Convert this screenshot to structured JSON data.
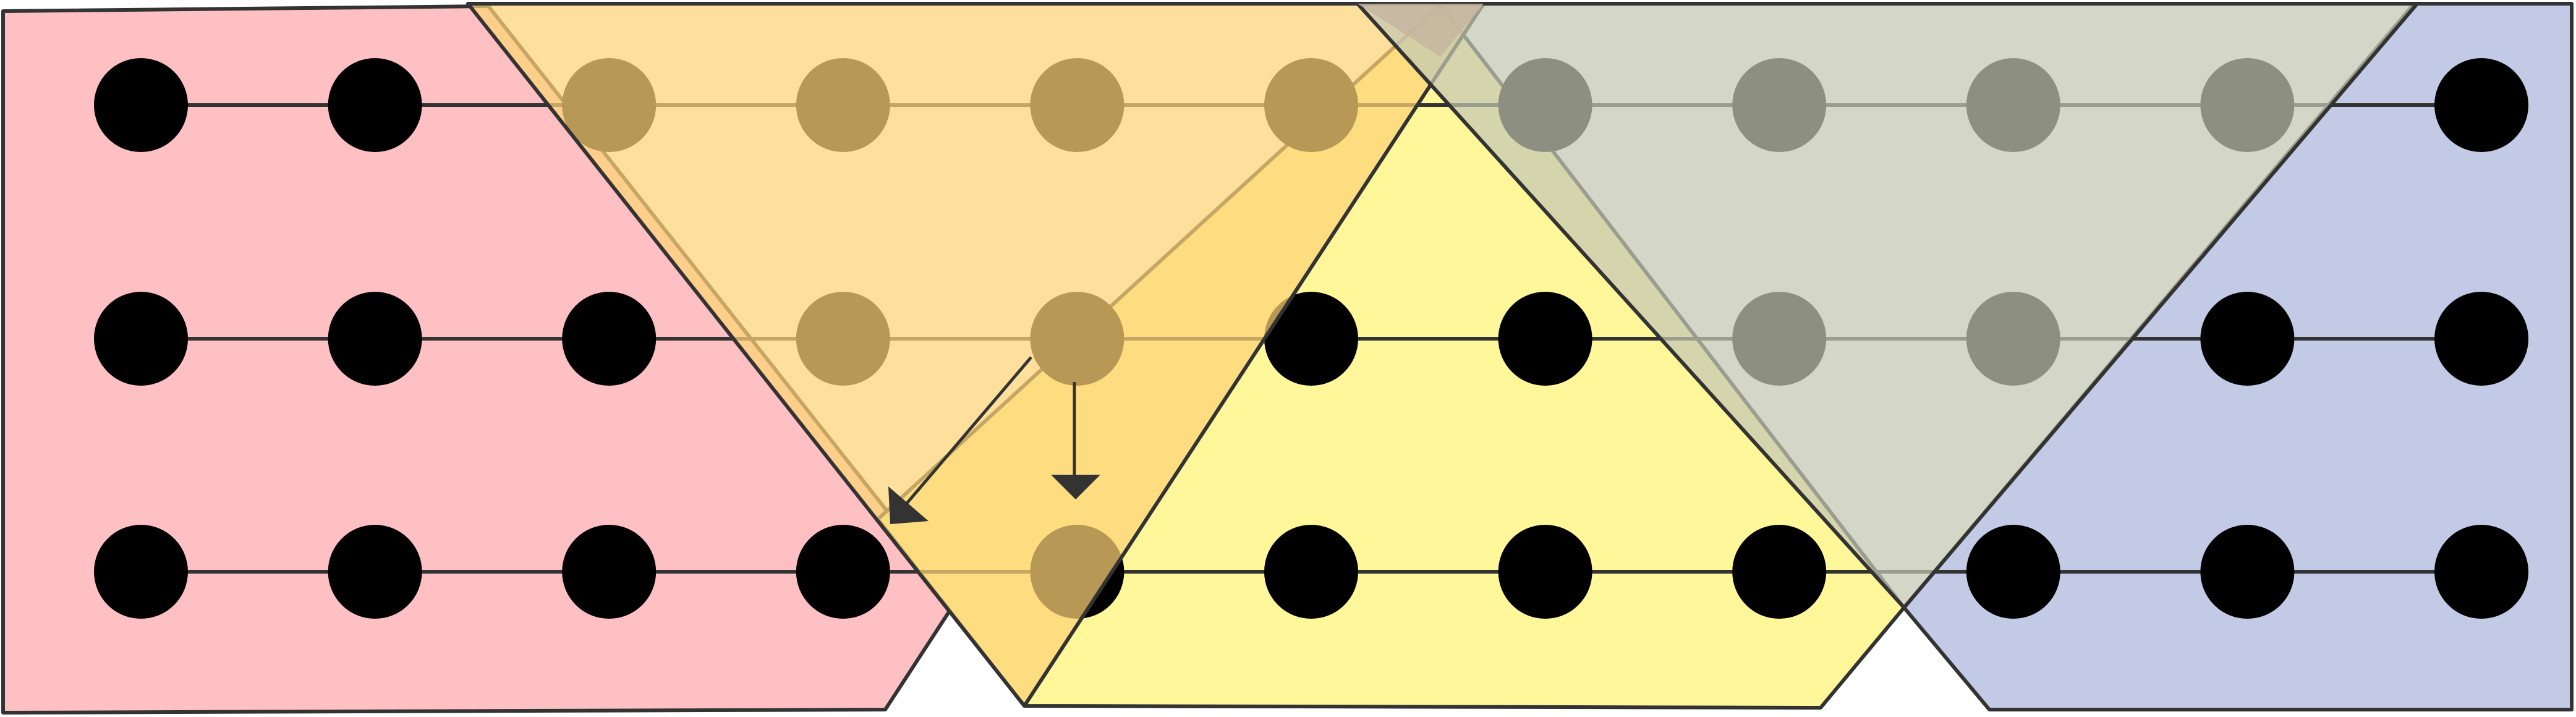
{
  "colors": {
    "red_region": "#ffc0c3",
    "yellow_region": "#fff799",
    "orange_region": "#fdd276",
    "gray_region": "#c4c7b3",
    "blue_region": "#c2cae6",
    "brown_region": "#c6b6a0",
    "outline": "#333333",
    "node": "#000000",
    "edge": "#333333",
    "arrow": "#333333"
  },
  "grid": {
    "rows": 3,
    "cols": 11
  }
}
